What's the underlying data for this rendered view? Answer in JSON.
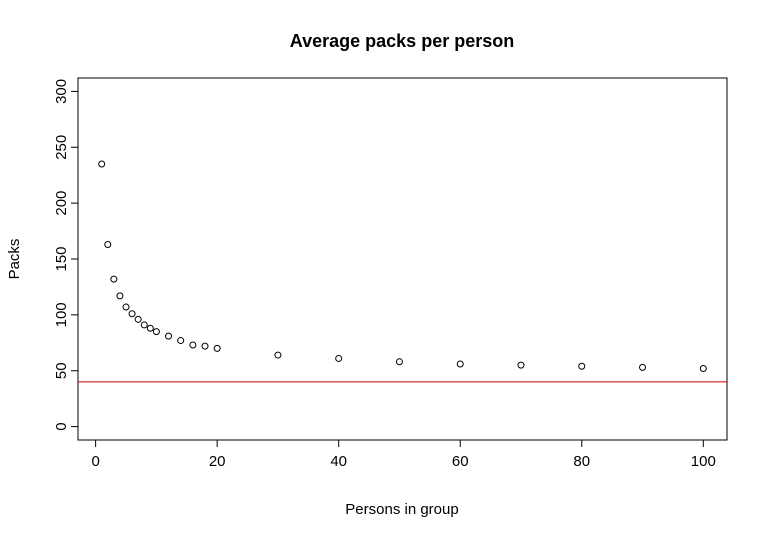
{
  "chart_data": {
    "type": "scatter",
    "title": "Average packs per person",
    "xlabel": "Persons in group",
    "ylabel": "Packs",
    "xlim": [
      -2.9,
      103.9
    ],
    "ylim": [
      -12,
      312
    ],
    "xticks": [
      0,
      20,
      40,
      60,
      80,
      100
    ],
    "yticks": [
      0,
      50,
      100,
      150,
      200,
      250,
      300
    ],
    "x": [
      1,
      2,
      3,
      4,
      5,
      6,
      7,
      8,
      9,
      10,
      12,
      14,
      16,
      18,
      20,
      30,
      40,
      50,
      60,
      70,
      80,
      90,
      100
    ],
    "y": [
      235,
      163,
      132,
      117,
      107,
      101,
      96,
      91,
      88,
      85,
      81,
      77,
      73,
      72,
      70,
      64,
      61,
      58,
      56,
      55,
      54,
      53,
      52
    ],
    "point_color": "#000000",
    "reference_line": {
      "orientation": "horizontal",
      "y": 40,
      "color": "#cc0000"
    },
    "grid": false
  }
}
